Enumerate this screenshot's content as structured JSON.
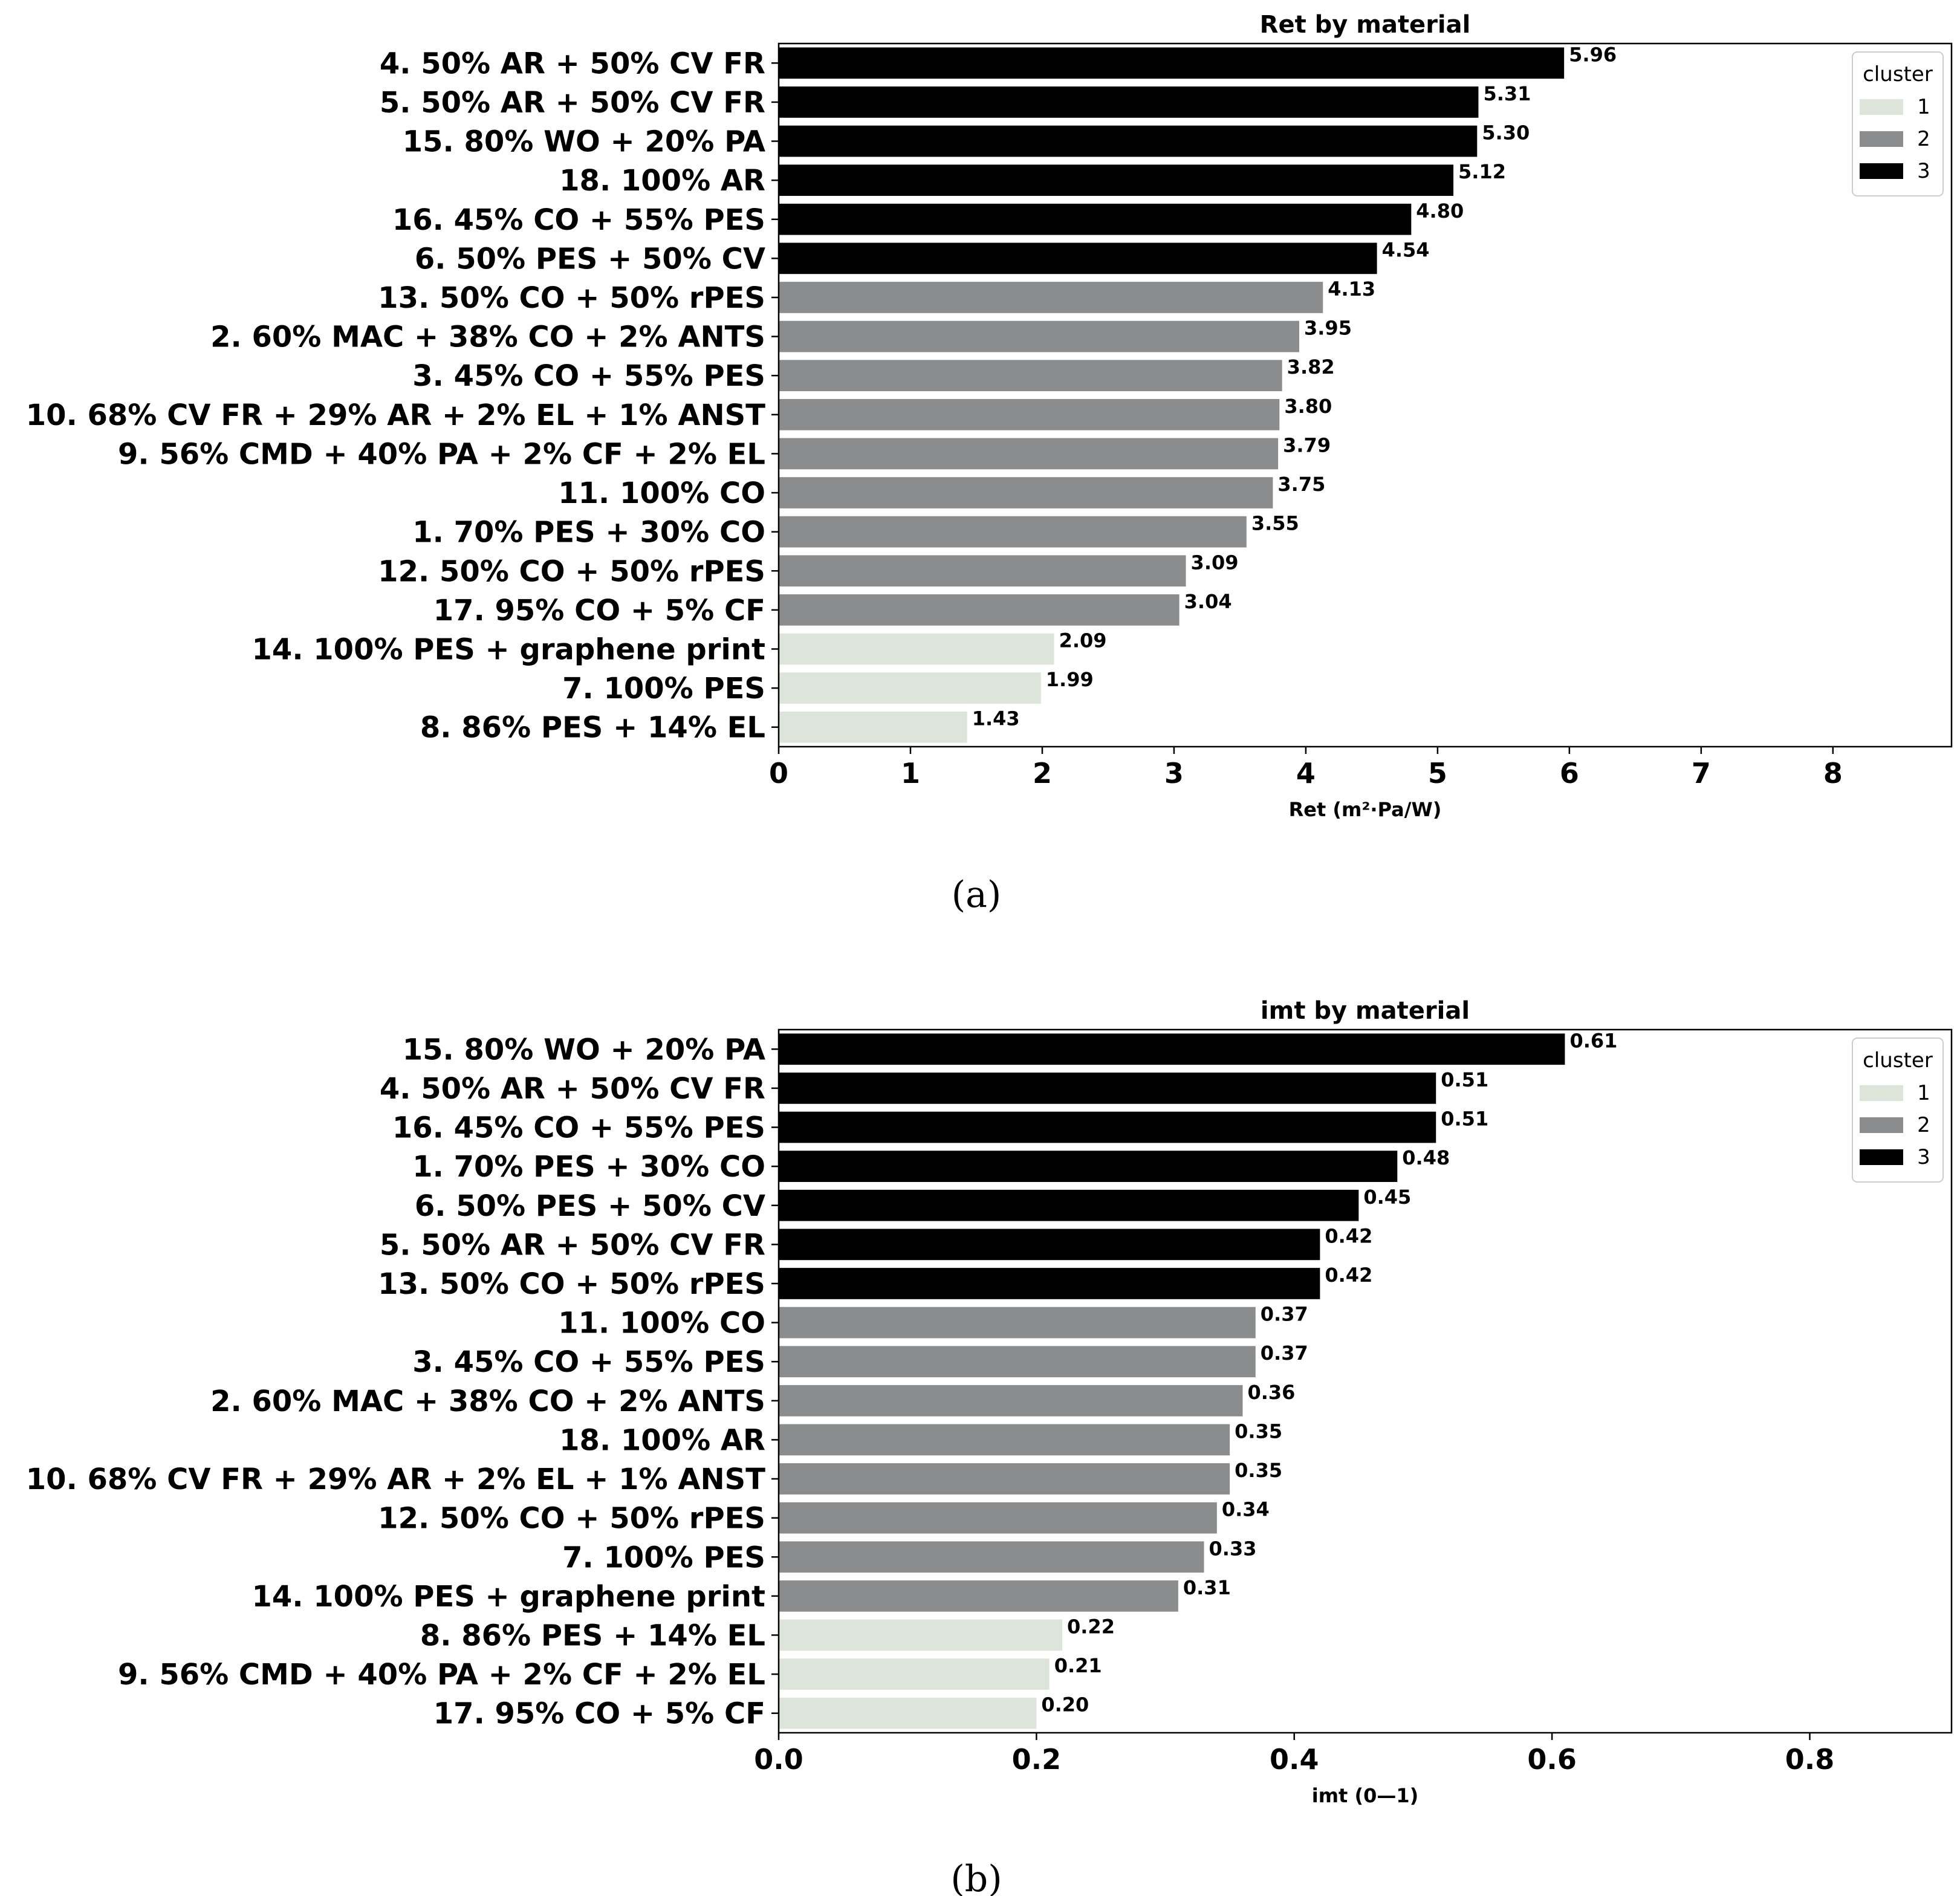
{
  "chart_data": [
    {
      "type": "bar",
      "orientation": "horizontal",
      "title": "Ret by material",
      "xlabel": "Ret  (m²·Pa/W)",
      "ylabel": "",
      "xlim": [
        0,
        8.9
      ],
      "xticks": [
        0,
        1,
        2,
        3,
        4,
        5,
        6,
        7,
        8
      ],
      "xtick_labels": [
        "0",
        "1",
        "2",
        "3",
        "4",
        "5",
        "6",
        "7",
        "8"
      ],
      "value_format": "2",
      "categories": [
        "4. 50% AR + 50% CV FR",
        "5. 50% AR + 50% CV FR",
        "15. 80% WO + 20% PA",
        "18. 100% AR",
        "16. 45% CO + 55% PES",
        "6. 50% PES + 50% CV",
        "13. 50% CO + 50% rPES",
        "2. 60% MAC + 38% CO + 2% ANTS",
        "3. 45% CO + 55% PES",
        "10. 68% CV FR + 29% AR + 2% EL + 1% ANST",
        "9. 56% CMD + 40% PA + 2% CF + 2% EL",
        "11. 100% CO",
        "1. 70% PES + 30% CO",
        "12. 50% CO + 50% rPES",
        "17. 95% CO + 5% CF",
        "14. 100% PES + graphene print",
        "7. 100% PES",
        "8. 86% PES + 14% EL"
      ],
      "values": [
        5.96,
        5.31,
        5.3,
        5.12,
        4.8,
        4.54,
        4.13,
        3.95,
        3.82,
        3.8,
        3.79,
        3.75,
        3.55,
        3.09,
        3.04,
        2.09,
        1.99,
        1.43
      ],
      "clusters": [
        "3",
        "3",
        "3",
        "3",
        "3",
        "3",
        "2",
        "2",
        "2",
        "2",
        "2",
        "2",
        "2",
        "2",
        "2",
        "1",
        "1",
        "1"
      ],
      "legend": {
        "title": "cluster",
        "placement": "top-right",
        "entries": [
          {
            "label": "1",
            "color": "#dde5db"
          },
          {
            "label": "2",
            "color": "#8a8c8e"
          },
          {
            "label": "3",
            "color": "#000000"
          }
        ]
      },
      "grid": false,
      "caption": "(a)"
    },
    {
      "type": "bar",
      "orientation": "horizontal",
      "title": "imt by material",
      "xlabel": "imt  (0—1)",
      "ylabel": "",
      "xlim": [
        0,
        0.91
      ],
      "xticks": [
        0.0,
        0.2,
        0.4,
        0.6,
        0.8
      ],
      "xtick_labels": [
        "0.0",
        "0.2",
        "0.4",
        "0.6",
        "0.8"
      ],
      "value_format": "2",
      "categories": [
        "15. 80% WO + 20% PA",
        "4. 50% AR + 50% CV FR",
        "16. 45% CO + 55% PES",
        "1. 70% PES + 30% CO",
        "6. 50% PES + 50% CV",
        "5. 50% AR + 50% CV FR",
        "13. 50% CO + 50% rPES",
        "11. 100% CO",
        "3. 45% CO + 55% PES",
        "2. 60% MAC + 38% CO + 2% ANTS",
        "18. 100% AR",
        "10. 68% CV FR + 29% AR + 2% EL + 1% ANST",
        "12. 50% CO + 50% rPES",
        "7. 100% PES",
        "14. 100% PES + graphene print",
        "8. 86% PES + 14% EL",
        "9. 56% CMD + 40% PA + 2% CF + 2% EL",
        "17. 95% CO + 5% CF"
      ],
      "values": [
        0.61,
        0.51,
        0.51,
        0.48,
        0.45,
        0.42,
        0.42,
        0.37,
        0.37,
        0.36,
        0.35,
        0.35,
        0.34,
        0.33,
        0.31,
        0.22,
        0.21,
        0.2
      ],
      "clusters": [
        "3",
        "3",
        "3",
        "3",
        "3",
        "3",
        "3",
        "2",
        "2",
        "2",
        "2",
        "2",
        "2",
        "2",
        "2",
        "1",
        "1",
        "1"
      ],
      "legend": {
        "title": "cluster",
        "placement": "top-right",
        "entries": [
          {
            "label": "1",
            "color": "#dde5db"
          },
          {
            "label": "2",
            "color": "#8a8c8e"
          },
          {
            "label": "3",
            "color": "#000000"
          }
        ]
      },
      "grid": false,
      "caption": "(b)"
    }
  ]
}
